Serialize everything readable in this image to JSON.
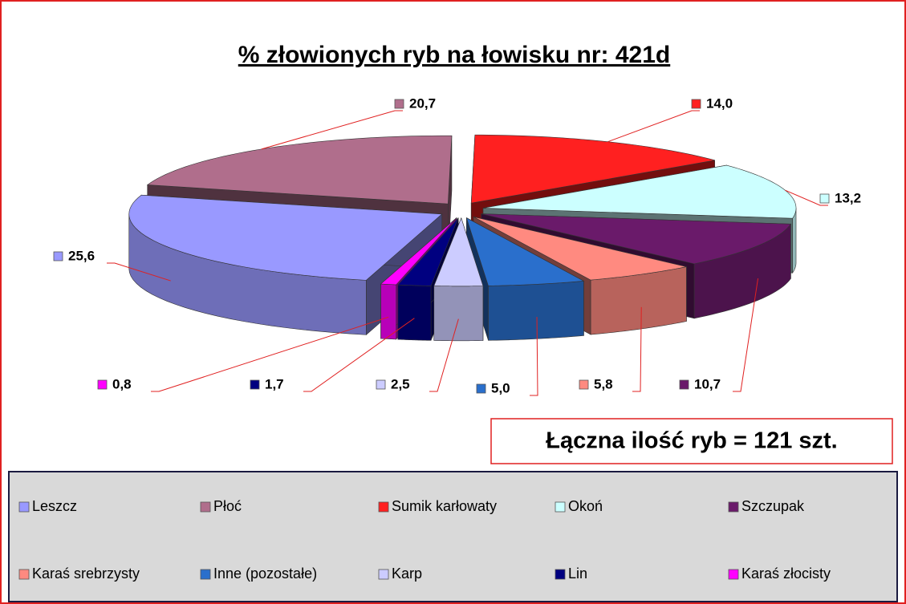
{
  "chart_data": {
    "type": "pie",
    "title": "% złowionych ryb na łowisku nr: 421d",
    "annotation": "Łączna ilość ryb = 121 szt.",
    "categories": [
      "Leszcz",
      "Płoć",
      "Sumik karłowaty",
      "Okoń",
      "Szczupak",
      "Karaś srebrzysty",
      "Inne (pozostałe)",
      "Karp",
      "Lin",
      "Karaś złocisty"
    ],
    "values": [
      25.6,
      20.7,
      14.0,
      13.2,
      10.7,
      5.8,
      5.0,
      2.5,
      1.7,
      0.8
    ],
    "value_labels": [
      "25,6",
      "20,7",
      "14,0",
      "13,2",
      "10,7",
      "5,8",
      "5,0",
      "2,5",
      "1,7",
      "0,8"
    ],
    "colors": [
      "#9999ff",
      "#b06e8c",
      "#ff2020",
      "#ccffff",
      "#6a1a6a",
      "#ff8a80",
      "#2a6fcc",
      "#ccccff",
      "#000080",
      "#ff00ff"
    ],
    "legend": "bottom"
  }
}
